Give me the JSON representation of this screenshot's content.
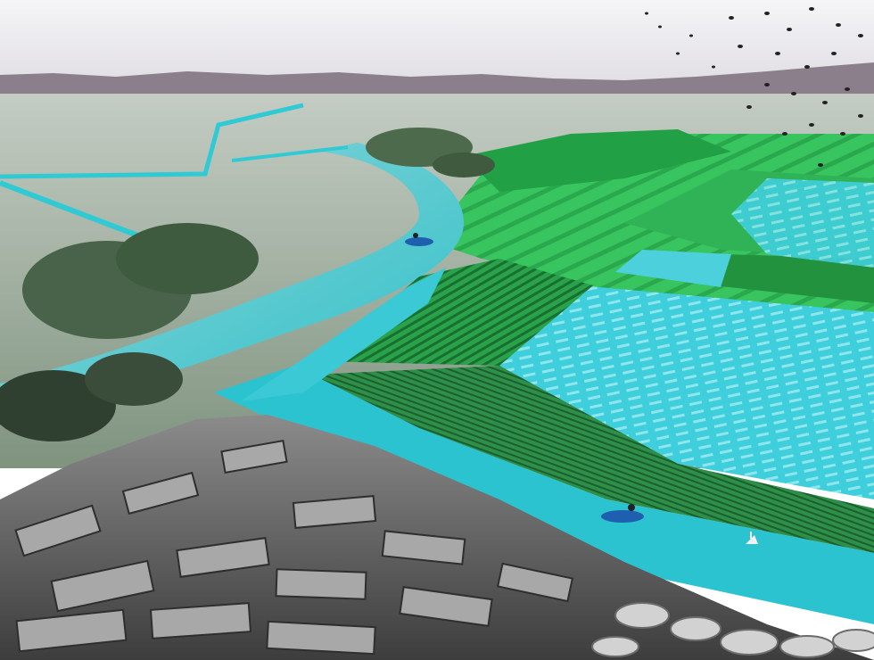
{
  "scene": {
    "kind": "landscape-collage",
    "elements": [
      "sky",
      "distant-hills",
      "flat-farmland",
      "river",
      "tree-clusters",
      "green-crop-fields",
      "turquoise-water-channels",
      "rowboats",
      "small-white-boat",
      "flock-of-birds",
      "stone-breakwater-blocks",
      "concrete-tetrapods"
    ],
    "colors": {
      "sky": "#ecedf0",
      "hills": "#7f7480",
      "farmland": "#a9b3a8",
      "river": "#49c3c6",
      "trees": "#3e5a3e",
      "crop_green": "#2fbf58",
      "crop_dark": "#1c7f3a",
      "water_channel": "#27c2cf",
      "paddy_water": "#4fd7e0",
      "stone": "#6a6a6a",
      "stone_light": "#b4b4b4",
      "bird": "#222222",
      "boat": "#1f5fb0"
    }
  }
}
